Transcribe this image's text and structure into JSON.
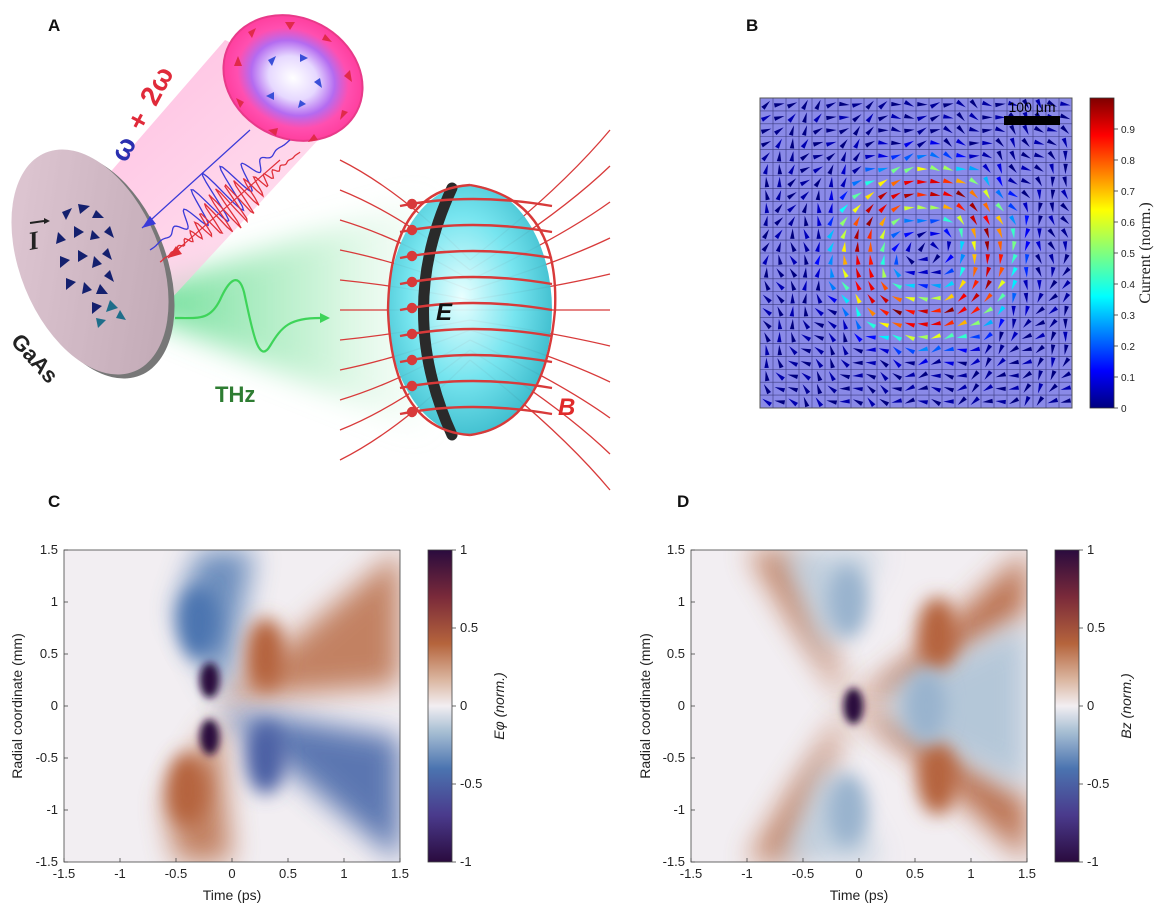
{
  "panels": {
    "A": {
      "letter": "A",
      "beam_label_a": "ω",
      "beam_label_plus": "+",
      "beam_label_b": "2ω",
      "current_symbol": "I",
      "sample_label": "GaAs",
      "thz_label": "THz",
      "e_label": "E",
      "b_label": "B"
    },
    "B": {
      "letter": "B",
      "scalebar_label": "100 μm",
      "colorbar_label": "Current (norm.)",
      "colorbar_ticks": [
        "0",
        "0.1",
        "0.2",
        "0.3",
        "0.4",
        "0.5",
        "0.6",
        "0.7",
        "0.8",
        "0.9"
      ]
    },
    "C": {
      "letter": "C"
    },
    "D": {
      "letter": "D"
    }
  },
  "colors": {
    "diverging_negative": "#2a0b3e",
    "diverging_mid": "#f2eef2",
    "diverging_positive": "#2a0b3e",
    "positive_warm": "#b5643c",
    "negative_cool": "#3c5fa8",
    "jet_low": "#00007f",
    "jet_high": "#7f0000",
    "grid_bg": "#8080e8"
  },
  "chart_data": [
    {
      "type": "heatmap",
      "panel": "C",
      "title": "",
      "xlabel": "Time (ps)",
      "ylabel": "Radial coordinate (mm)",
      "colorbar_label": "Eφ (norm.)",
      "xlim": [
        -1.5,
        1.5
      ],
      "ylim": [
        -1.5,
        1.5
      ],
      "clim": [
        -1,
        1
      ],
      "xticks": [
        -1.5,
        -1,
        -0.5,
        0,
        0.5,
        1,
        1.5
      ],
      "yticks": [
        -1.5,
        -1,
        -0.5,
        0,
        0.5,
        1,
        1.5
      ],
      "colorbar_ticks": [
        -1,
        -0.5,
        0,
        0.5,
        1
      ],
      "xtick_labels": [
        "-1.5",
        "-1",
        "-0.5",
        "0",
        "0.5",
        "1",
        "1.5"
      ],
      "ytick_labels": [
        "-1.5",
        "-1",
        "-0.5",
        "0",
        "0.5",
        "1",
        "1.5"
      ],
      "colorbar_tick_labels": [
        "-1",
        "-0.5",
        "0",
        "0.5",
        "1"
      ],
      "features": [
        {
          "x": -0.2,
          "y": 0.25,
          "value": 1
        },
        {
          "x": -0.2,
          "y": -0.3,
          "value": 1
        },
        {
          "x": 0.3,
          "y": 0.5,
          "value": 0.4
        },
        {
          "x": 0.3,
          "y": -0.5,
          "value": -0.5
        },
        {
          "x": -0.3,
          "y": 0.8,
          "value": -0.4
        },
        {
          "x": -0.4,
          "y": -0.8,
          "value": 0.4
        }
      ]
    },
    {
      "type": "heatmap",
      "panel": "D",
      "title": "",
      "xlabel": "Time (ps)",
      "ylabel": "Radial coordinate (mm)",
      "colorbar_label": "Bz (norm.)",
      "xlim": [
        -1.5,
        1.5
      ],
      "ylim": [
        -1.5,
        1.5
      ],
      "clim": [
        -1,
        1
      ],
      "xticks": [
        -1.5,
        -1,
        -0.5,
        0,
        0.5,
        1,
        1.5
      ],
      "yticks": [
        -1.5,
        -1,
        -0.5,
        0,
        0.5,
        1,
        1.5
      ],
      "colorbar_ticks": [
        -1,
        -0.5,
        0,
        0.5,
        1
      ],
      "xtick_labels": [
        "-1.5",
        "-1",
        "-0.5",
        "0",
        "0.5",
        "1",
        "1.5"
      ],
      "ytick_labels": [
        "-1.5",
        "-1",
        "-0.5",
        "0",
        "0.5",
        "1",
        "1.5"
      ],
      "colorbar_tick_labels": [
        "-1",
        "-0.5",
        "0",
        "0.5",
        "1"
      ],
      "features": [
        {
          "x": -0.05,
          "y": 0,
          "value": 1
        },
        {
          "x": 0.7,
          "y": 0.7,
          "value": 0.4
        },
        {
          "x": 0.7,
          "y": -0.7,
          "value": 0.4
        },
        {
          "x": 0.6,
          "y": 0,
          "value": -0.2
        },
        {
          "x": -0.1,
          "y": 1.0,
          "value": -0.2
        },
        {
          "x": -0.1,
          "y": -1.0,
          "value": -0.2
        }
      ]
    }
  ]
}
